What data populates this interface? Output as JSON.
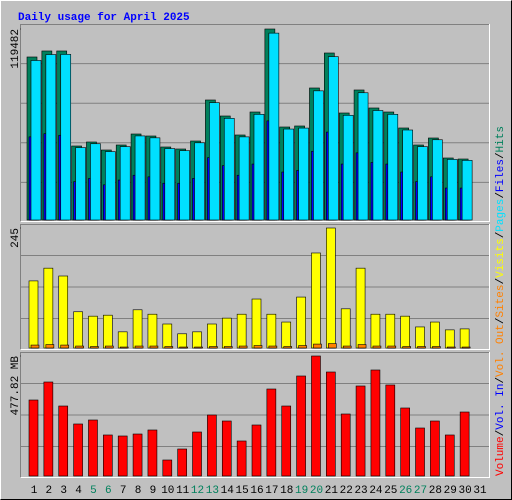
{
  "title": "Daily usage for April 2025",
  "categories": [
    "1",
    "2",
    "3",
    "4",
    "5",
    "6",
    "7",
    "8",
    "9",
    "10",
    "11",
    "12",
    "13",
    "14",
    "15",
    "16",
    "17",
    "18",
    "19",
    "20",
    "21",
    "22",
    "23",
    "24",
    "25",
    "26",
    "27",
    "28",
    "29",
    "30",
    "31"
  ],
  "category_colors": [
    "#000000",
    "#000000",
    "#000000",
    "#000000",
    "#00805C",
    "#00805C",
    "#000000",
    "#000000",
    "#000000",
    "#000000",
    "#000000",
    "#00805C",
    "#00805C",
    "#000000",
    "#000000",
    "#000000",
    "#000000",
    "#000000",
    "#00805C",
    "#00805C",
    "#000000",
    "#000000",
    "#000000",
    "#000000",
    "#000000",
    "#00805C",
    "#00805C",
    "#000000",
    "#000000",
    "#000000",
    "#000000"
  ],
  "legend_separator": "/",
  "chart_data": [
    {
      "type": "bar",
      "ylim": [
        0,
        119482
      ],
      "yticks": [
        119482
      ],
      "grid": true,
      "series": [
        {
          "name": "Hits",
          "color": "#00805C",
          "values": [
            101970,
            105730,
            105730,
            46290,
            48800,
            43790,
            46920,
            53800,
            52550,
            45670,
            44420,
            49420,
            75070,
            65060,
            53180,
            67560,
            119482,
            58180,
            58810,
            82580,
            104470,
            66940,
            81330,
            70070,
            67560,
            57560,
            46920,
            51300,
            38790,
            38160,
            null
          ]
        },
        {
          "name": "Files",
          "color": "#0000FF",
          "values": [
            52000,
            54000,
            53000,
            24000,
            26000,
            22000,
            25000,
            28000,
            27000,
            23000,
            23000,
            26000,
            39000,
            34000,
            28000,
            35000,
            62000,
            30000,
            31000,
            43000,
            55000,
            35000,
            42000,
            36000,
            35000,
            30000,
            24000,
            27000,
            20000,
            20000,
            null
          ]
        },
        {
          "name": "Pages",
          "color": "#00E0FF",
          "values": [
            99800,
            103500,
            103600,
            45300,
            47700,
            42800,
            45900,
            52600,
            51400,
            44700,
            43400,
            48300,
            73400,
            63600,
            52000,
            66100,
            116900,
            56900,
            57500,
            80800,
            102200,
            65500,
            79600,
            68500,
            66100,
            56300,
            45900,
            50200,
            37900,
            37300,
            null
          ]
        }
      ]
    },
    {
      "type": "bar",
      "ylim": [
        0,
        245
      ],
      "yticks": [
        245
      ],
      "grid": true,
      "series": [
        {
          "name": "Visits",
          "color": "#FFFF00",
          "values": [
            137,
            163,
            147,
            74,
            65,
            67,
            33,
            78,
            69,
            49,
            29,
            33,
            49,
            61,
            69,
            100,
            69,
            53,
            104,
            194,
            245,
            80,
            163,
            69,
            69,
            65,
            43,
            53,
            37,
            39,
            null
          ]
        },
        {
          "name": "Sites",
          "color": "#FF8000",
          "values": [
            6,
            7,
            6,
            4,
            3,
            4,
            2,
            4,
            4,
            3,
            2,
            2,
            3,
            3,
            4,
            5,
            4,
            3,
            5,
            8,
            9,
            4,
            7,
            4,
            4,
            3,
            3,
            3,
            2,
            2,
            null
          ]
        }
      ]
    },
    {
      "type": "bar",
      "ylim": [
        0,
        477.82
      ],
      "yticks": [
        {
          "value": 477.82,
          "label": "477.82 MB"
        }
      ],
      "grid": true,
      "series": [
        {
          "name": "Vol. Out",
          "color": "#FF8000",
          "values": [
            0,
            0,
            0,
            0,
            0,
            0,
            0,
            0,
            0,
            0,
            0,
            0,
            0,
            0,
            0,
            0,
            0,
            0,
            0,
            0,
            0,
            0,
            0,
            0,
            0,
            0,
            0,
            0,
            0,
            0,
            null
          ]
        },
        {
          "name": "Vol. In",
          "color": "#0000FF",
          "values": [
            0,
            0,
            0,
            0,
            0,
            0,
            0,
            0,
            0,
            0,
            0,
            0,
            0,
            0,
            0,
            0,
            0,
            0,
            0,
            0,
            0,
            0,
            0,
            0,
            0,
            0,
            0,
            0,
            0,
            0,
            null
          ]
        },
        {
          "name": "Volume",
          "color": "#FF0000",
          "values": [
            302.6,
            374.3,
            278.7,
            207.1,
            223.0,
            163.3,
            159.3,
            167.2,
            183.2,
            63.7,
            107.5,
            175.2,
            242.9,
            219.0,
            139.4,
            203.1,
            346.4,
            278.7,
            398.2,
            477.82,
            414.1,
            246.9,
            358.4,
            422.1,
            362.4,
            270.8,
            191.1,
            219.0,
            163.3,
            254.8,
            null
          ]
        }
      ]
    }
  ]
}
